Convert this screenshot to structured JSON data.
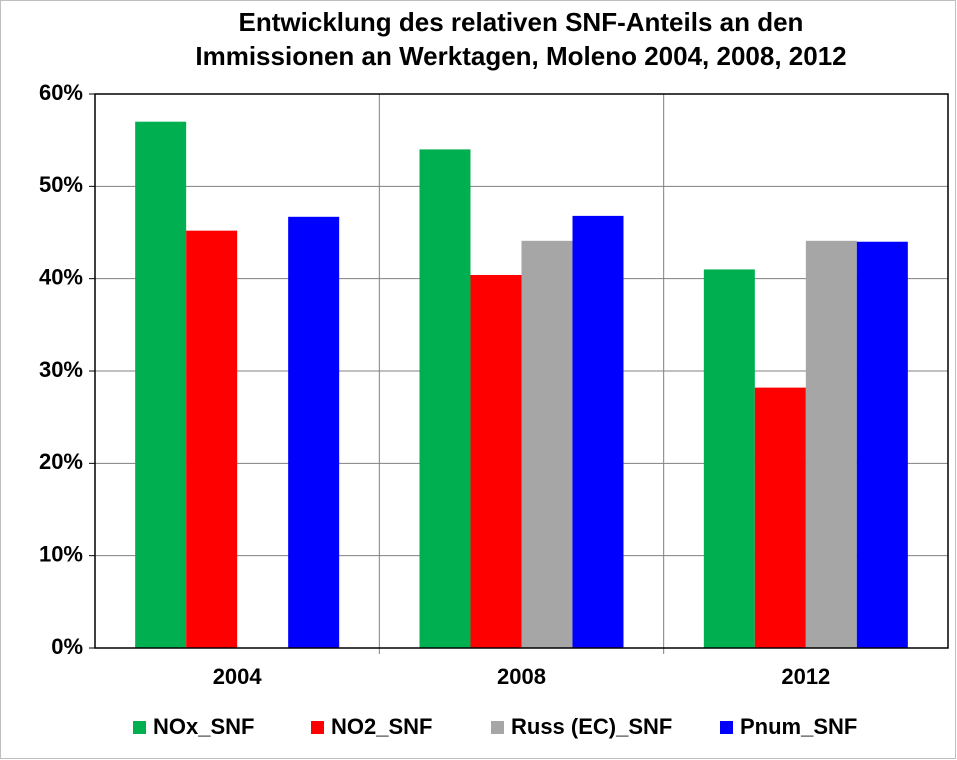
{
  "chart_data": {
    "type": "bar",
    "title": [
      "Entwicklung des relativen SNF-Anteils an den",
      "Immissionen an Werktagen, Moleno 2004, 2008, 2012"
    ],
    "categories": [
      "2004",
      "2008",
      "2012"
    ],
    "series": [
      {
        "name": "NOx_SNF",
        "color": "#00b050",
        "values": [
          57,
          54,
          41
        ]
      },
      {
        "name": "NO2_SNF",
        "color": "#ff0000",
        "values": [
          45.2,
          40.4,
          28.2
        ]
      },
      {
        "name": "Russ (EC)_SNF",
        "color": "#a6a6a6",
        "values": [
          null,
          44.1,
          44.1
        ]
      },
      {
        "name": "Pnum_SNF",
        "color": "#0000ff",
        "values": [
          46.7,
          46.8,
          44
        ]
      }
    ],
    "ylim": [
      0,
      60
    ],
    "yticks": [
      {
        "value": 0,
        "label": "0%"
      },
      {
        "value": 10,
        "label": "10%"
      },
      {
        "value": 20,
        "label": "20%"
      },
      {
        "value": 30,
        "label": "30%"
      },
      {
        "value": 40,
        "label": "40%"
      },
      {
        "value": 50,
        "label": "50%"
      },
      {
        "value": 60,
        "label": "60%"
      }
    ],
    "grid": true,
    "legend": "bottom"
  }
}
